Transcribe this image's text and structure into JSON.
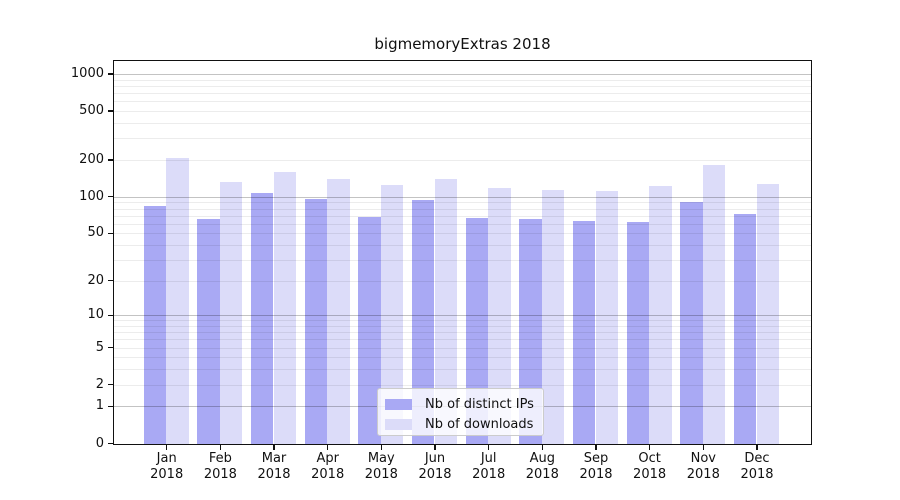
{
  "figure": {
    "background": "#ffffff",
    "text_color": "#111111"
  },
  "chart_data": {
    "type": "bar",
    "title": "bigmemoryExtras 2018",
    "categories": [
      "Jan",
      "Feb",
      "Mar",
      "Apr",
      "May",
      "Jun",
      "Jul",
      "Aug",
      "Sep",
      "Oct",
      "Nov",
      "Dec"
    ],
    "x_sublabel": "2018",
    "series": [
      {
        "name": "Nb of distinct IPs",
        "color": "#a9a9f4",
        "values": [
          84,
          66,
          108,
          96,
          69,
          95,
          67,
          66,
          64,
          63,
          91,
          73
        ]
      },
      {
        "name": "Nb of downloads",
        "color": "#dcdcf9",
        "values": [
          208,
          133,
          160,
          142,
          127,
          140,
          118,
          115,
          113,
          124,
          183,
          128
        ]
      }
    ],
    "xlabel": "",
    "ylabel": "",
    "yscale": "log1p",
    "ylim": [
      0,
      1265
    ],
    "y_ticks": [
      0,
      1,
      2,
      5,
      10,
      20,
      50,
      100,
      200,
      500,
      1000
    ],
    "grid": {
      "on": true,
      "major_values": [
        1,
        10,
        100,
        1000
      ],
      "minor_values": [
        2,
        3,
        4,
        5,
        6,
        7,
        8,
        9,
        20,
        30,
        40,
        50,
        60,
        70,
        80,
        90,
        200,
        300,
        400,
        500,
        600,
        700,
        800,
        900
      ],
      "major_color": "#c3c3c3",
      "minor_color": "#ececec"
    },
    "legend_position": "lower center"
  },
  "legend": {
    "items": [
      {
        "label": "Nb of distinct IPs",
        "color": "#a9a9f4"
      },
      {
        "label": "Nb of downloads",
        "color": "#dcdcf9"
      }
    ]
  }
}
